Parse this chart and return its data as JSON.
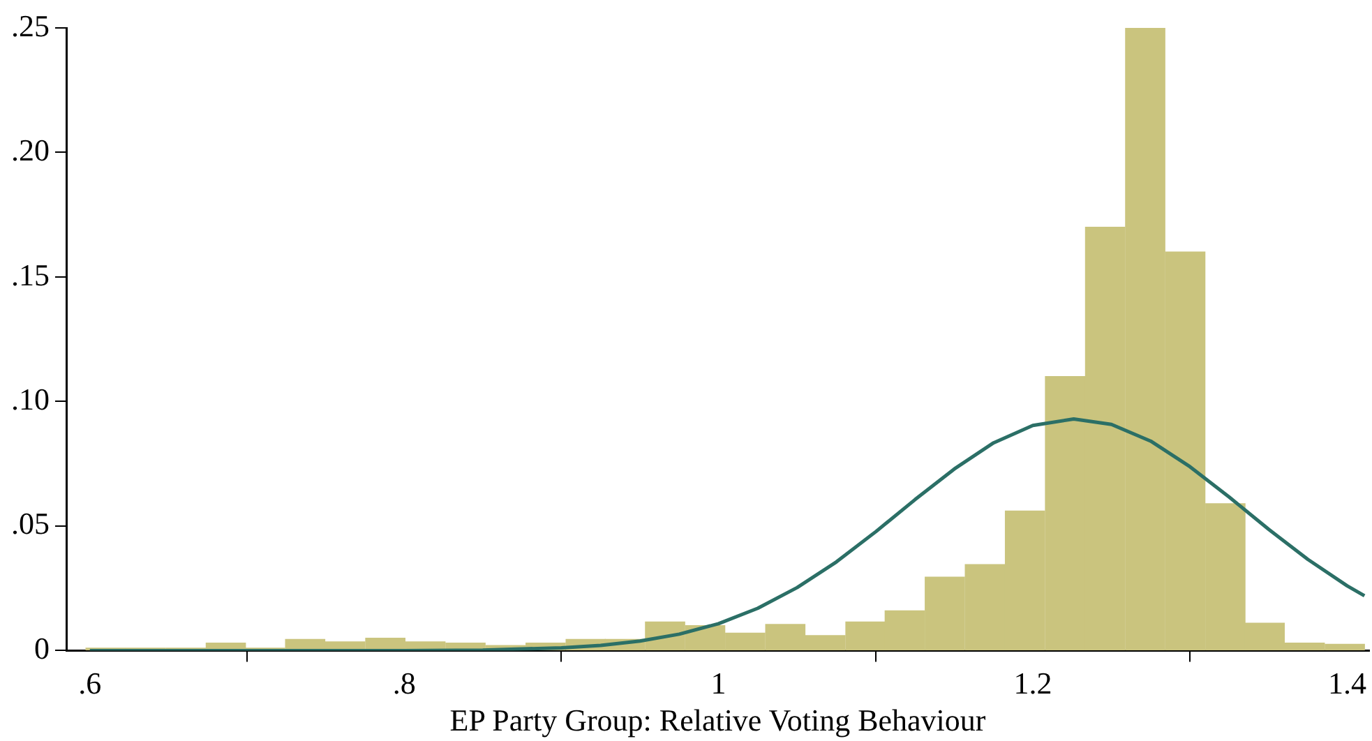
{
  "chart_data": {
    "type": "histogram",
    "xlabel": "EP Party Group: Relative Voting Behaviour",
    "bins": [
      0.597,
      0.623,
      0.648,
      0.674,
      0.699,
      0.724,
      0.75,
      0.775,
      0.801,
      0.826,
      0.852,
      0.877,
      0.903,
      0.928,
      0.953,
      0.979,
      1.004,
      1.03,
      1.055,
      1.081,
      1.106,
      1.131,
      1.157,
      1.182,
      1.208,
      1.233,
      1.259,
      1.284,
      1.31,
      1.335,
      1.36,
      1.386,
      1.411
    ],
    "values": [
      0.001,
      0.001,
      0.001,
      0.003,
      0.001,
      0.0045,
      0.0035,
      0.005,
      0.0035,
      0.003,
      0.002,
      0.003,
      0.0045,
      0.0045,
      0.0115,
      0.01,
      0.007,
      0.0105,
      0.006,
      0.0115,
      0.016,
      0.0295,
      0.0345,
      0.056,
      0.11,
      0.17,
      0.25,
      0.16,
      0.059,
      0.011,
      0.003,
      0.0025
    ],
    "color": "#cac47e",
    "series": [
      {
        "type": "line",
        "color": "#2b6f66",
        "x": [
          0.6,
          0.7,
          0.8,
          0.85,
          0.9,
          0.925,
          0.95,
          0.975,
          1.0,
          1.025,
          1.05,
          1.075,
          1.1,
          1.125,
          1.15,
          1.175,
          1.2,
          1.226,
          1.25,
          1.275,
          1.3,
          1.325,
          1.35,
          1.375,
          1.4,
          1.411
        ],
        "values": [
          0,
          0,
          0,
          0.0002,
          0.0011,
          0.0021,
          0.0038,
          0.0066,
          0.0108,
          0.017,
          0.0253,
          0.0356,
          0.0477,
          0.0606,
          0.0729,
          0.0834,
          0.0904,
          0.093,
          0.0908,
          0.0841,
          0.0738,
          0.0616,
          0.0487,
          0.0366,
          0.026,
          0.022
        ]
      }
    ],
    "xlim": [
      0.585,
      1.414
    ],
    "ylim": [
      0,
      0.25
    ],
    "xticks": [
      {
        "value": 0.6,
        "label": ".6"
      },
      {
        "value": 0.8,
        "label": ".8"
      },
      1,
      {
        "value": 1.2,
        "label": "1.2"
      },
      {
        "value": 1.4,
        "label": "1.4"
      }
    ],
    "yticks": [
      0,
      {
        "value": 0.05,
        "label": ".05"
      },
      {
        "value": 0.1,
        "label": ".10"
      },
      {
        "value": 0.15,
        "label": ".15"
      },
      {
        "value": 0.2,
        "label": ".20"
      },
      {
        "value": 0.25,
        "label": ".25"
      }
    ]
  }
}
